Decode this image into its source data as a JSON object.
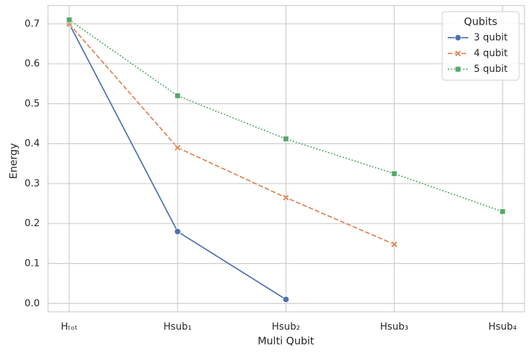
{
  "chart_data": {
    "type": "line",
    "x_label": "Multi Qubit",
    "y_label": "Energy",
    "categories": [
      "Hₜₒₜ",
      "Hsub₁",
      "Hsub₂",
      "Hsub₃",
      "Hsub₄"
    ],
    "series": [
      {
        "name": "3 qubit",
        "color": "#4c72b0",
        "dash": "solid",
        "marker": "circle",
        "values": [
          0.7,
          0.18,
          0.01,
          null,
          null
        ]
      },
      {
        "name": "4 qubit",
        "color": "#dd8452",
        "dash": "dashed",
        "marker": "x",
        "values": [
          0.7,
          0.39,
          0.265,
          0.148,
          null
        ]
      },
      {
        "name": "5 qubit",
        "color": "#55a868",
        "dash": "dotted",
        "marker": "square",
        "values": [
          0.71,
          0.52,
          0.412,
          0.325,
          0.23
        ]
      }
    ],
    "ylim": [
      -0.021,
      0.746
    ],
    "yticks": [
      {
        "value": 0,
        "label": "0.0"
      },
      0.1,
      0.2,
      0.3,
      0.4,
      0.5,
      0.6,
      0.7
    ],
    "grid": true,
    "legend_title": "Qubits",
    "legend_position": "upper right"
  }
}
